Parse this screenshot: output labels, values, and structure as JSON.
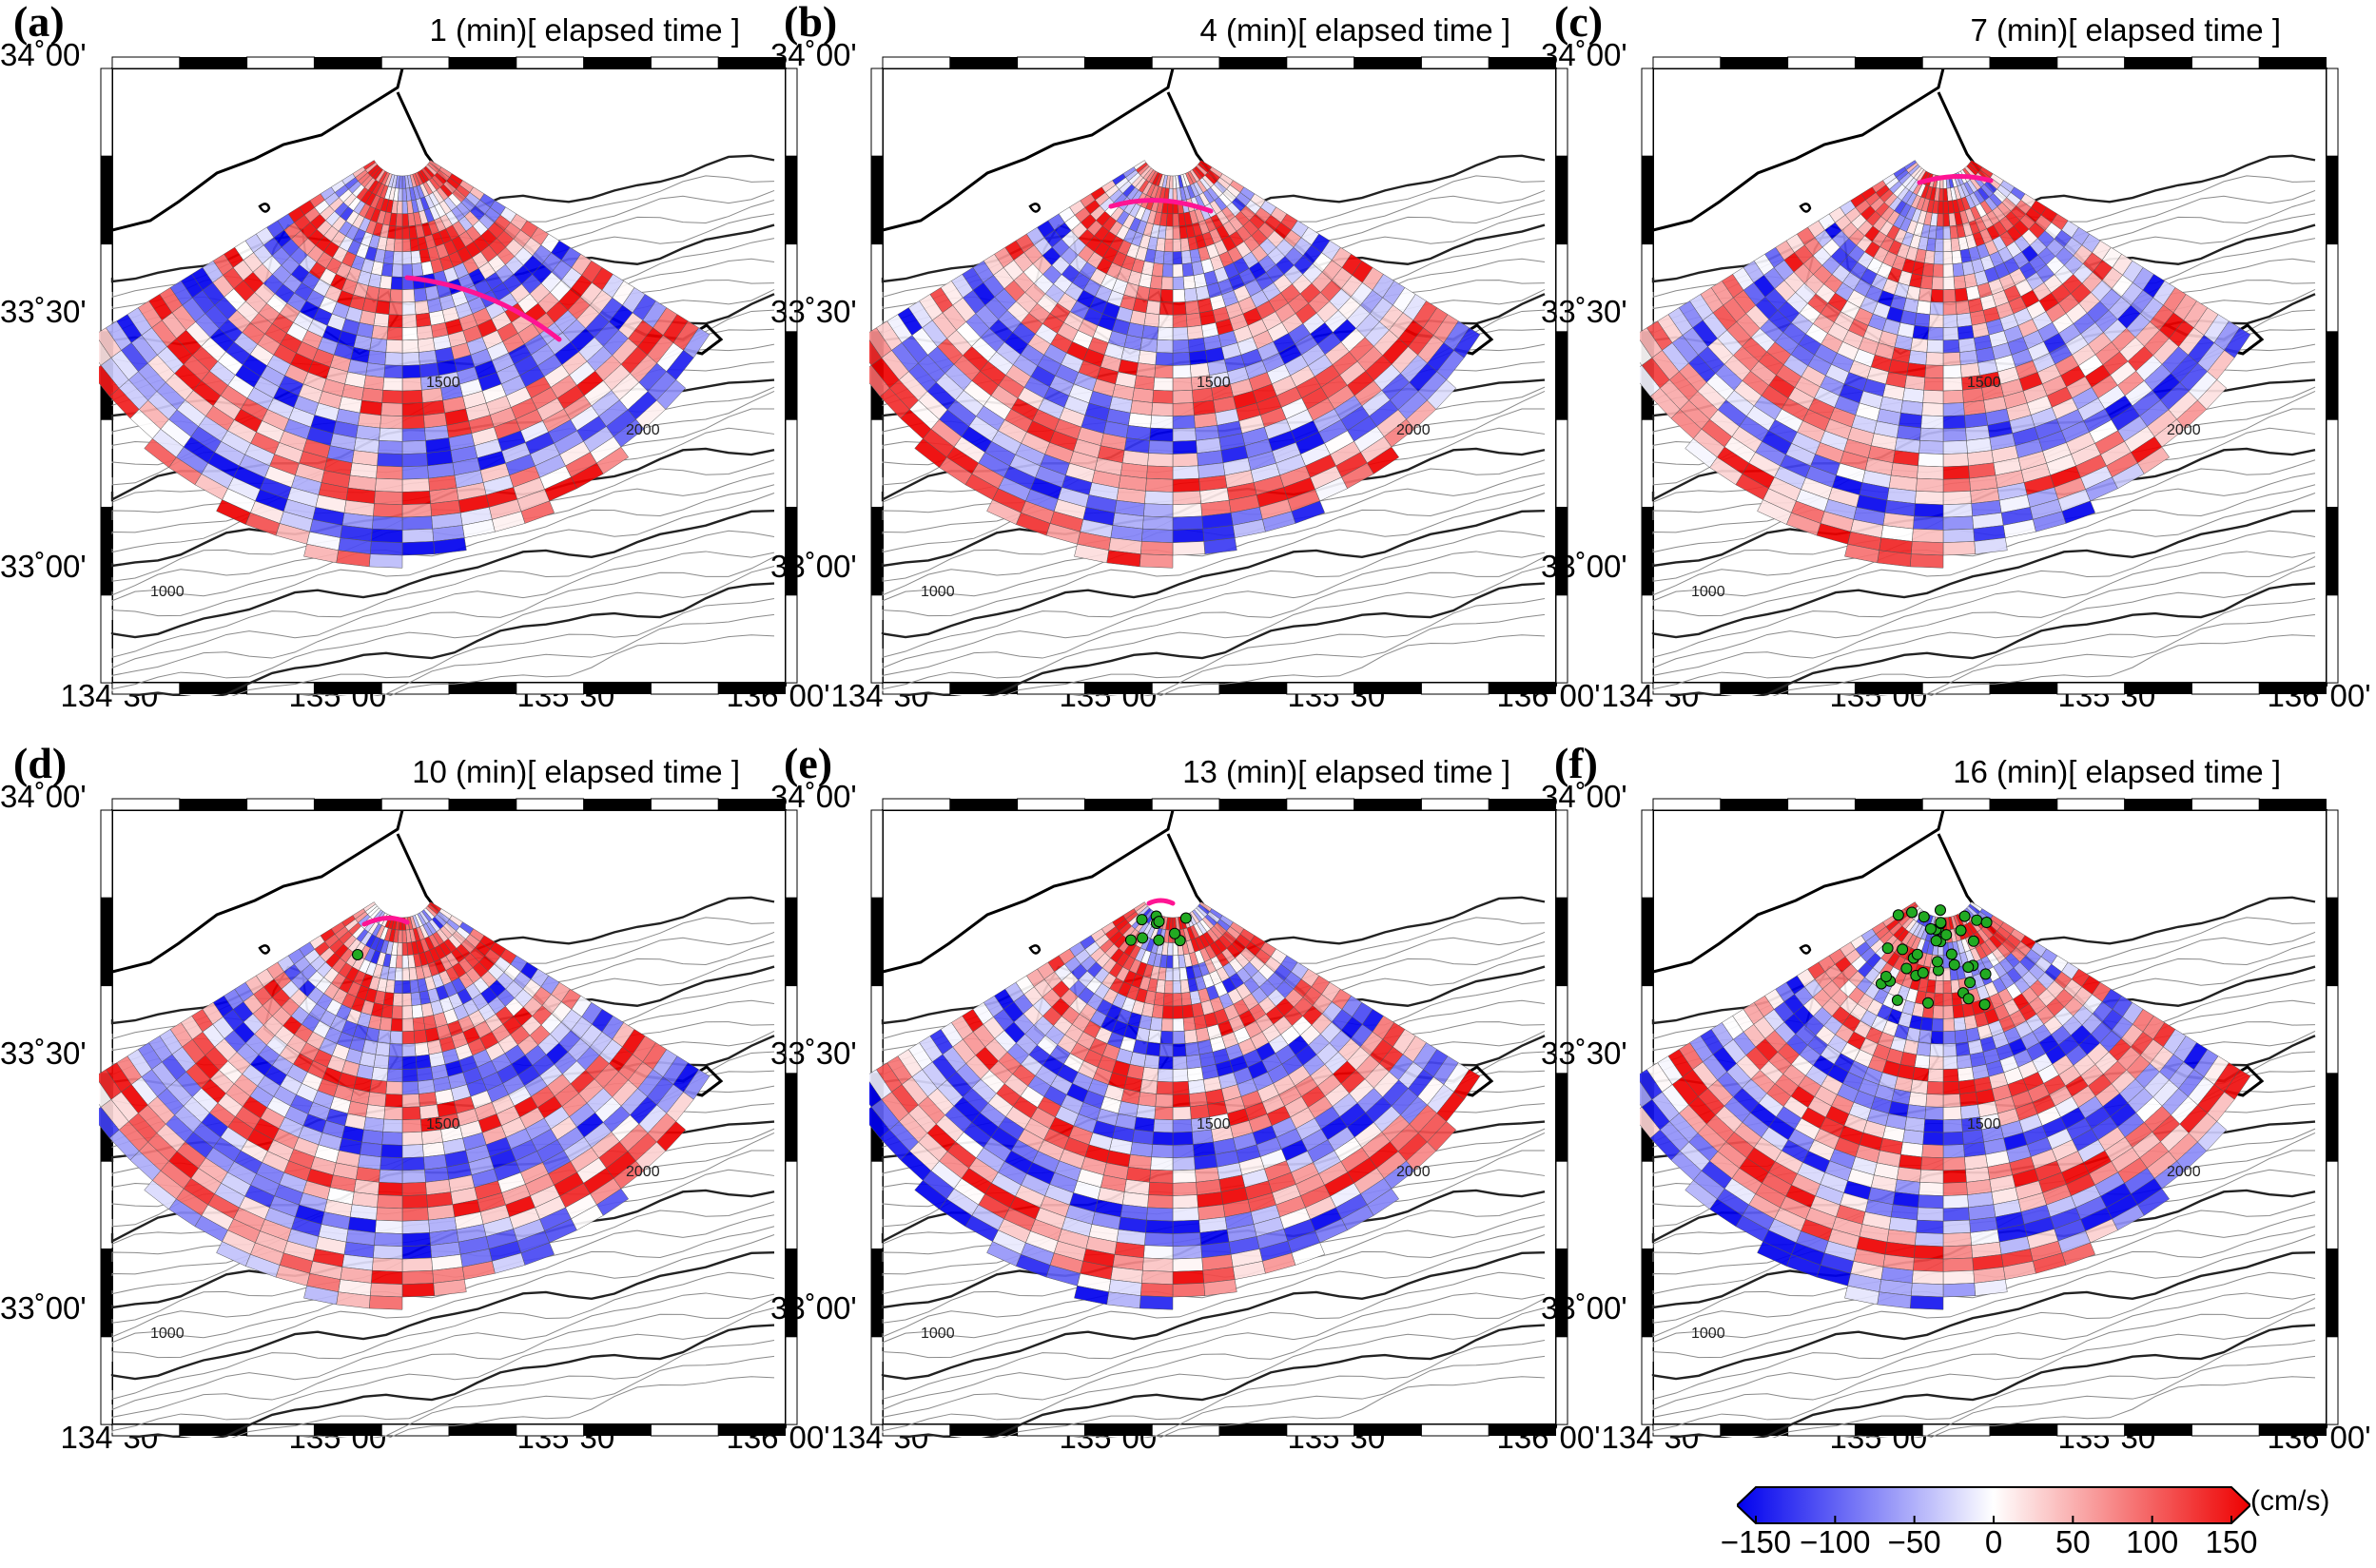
{
  "figure": {
    "time_suffix": " (min)[ elapsed time ]",
    "lat_labels": [
      "34˚00'",
      "33˚30'",
      "33˚00'"
    ],
    "lon_labels": [
      "134˚30'",
      "135˚00'",
      "135˚30'",
      "136˚00'"
    ],
    "contour_labels": [
      "1500",
      "2000",
      "1000"
    ],
    "panels": [
      {
        "label": "(a)",
        "time": "1 (min)[ elapsed time ]",
        "dot_count": 0
      },
      {
        "label": "(b)",
        "time": "4 (min)[ elapsed time ]",
        "dot_count": 0
      },
      {
        "label": "(c)",
        "time": "7 (min)[ elapsed time ]",
        "dot_count": 0
      },
      {
        "label": "(d)",
        "time": "10 (min)[ elapsed time ]",
        "dot_count": 1
      },
      {
        "label": "(e)",
        "time": "13 (min)[ elapsed time ]",
        "dot_count": 10
      },
      {
        "label": "(f)",
        "time": "16 (min)[ elapsed time ]",
        "dot_count": 40
      }
    ]
  },
  "colorbar": {
    "unit": "(cm/s)",
    "ticks": [
      "−150",
      "−100",
      "−50",
      "0",
      "50",
      "100",
      "150"
    ],
    "tick_values": [
      -150,
      -100,
      -50,
      0,
      50,
      100,
      150
    ],
    "range": [
      -150,
      150
    ],
    "colors": {
      "negative": "#0000ee",
      "zero": "#ffffff",
      "positive": "#ee0000"
    }
  },
  "colors": {
    "front_line": "#ff1493",
    "dots": "#22aa22",
    "coast": "#000000",
    "contour": "#888888"
  }
}
